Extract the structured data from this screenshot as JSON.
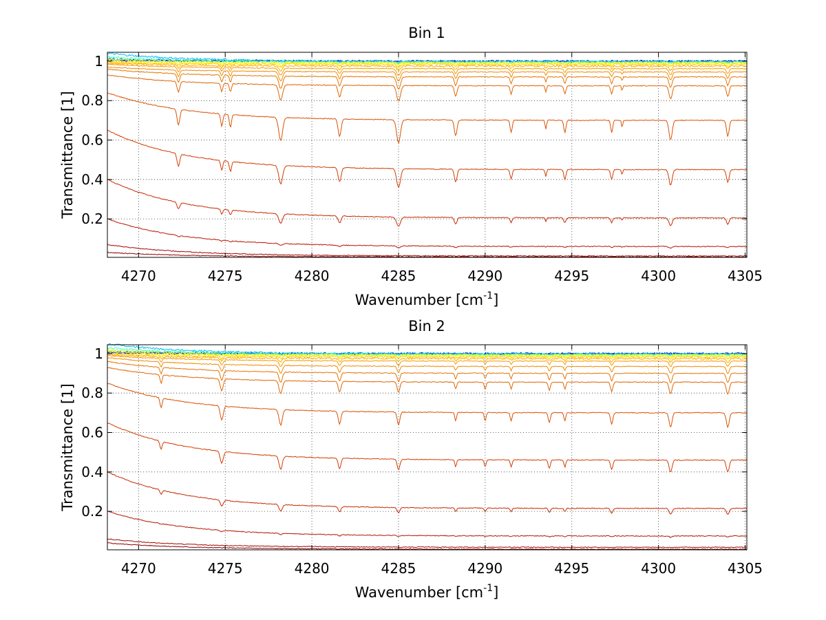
{
  "chart_data": [
    {
      "type": "line",
      "title": "Bin 1",
      "xlabel": "Wavenumber [cm",
      "xlabel_sup": "-1",
      "xlabel_end": "]",
      "ylabel": "Transmittance [1]",
      "xlim": [
        4268.2,
        4305.1
      ],
      "ylim": [
        0.005,
        1.045
      ],
      "xticks": [
        4270,
        4275,
        4280,
        4285,
        4290,
        4295,
        4300,
        4305
      ],
      "yticks": [
        0.2,
        0.4,
        0.6,
        0.8,
        1
      ],
      "ytick_labels": [
        "0.2",
        "0.4",
        "0.6",
        "0.8",
        "1"
      ],
      "grid": true,
      "dips": [
        {
          "x": 4272.3,
          "w": 0.9
        },
        {
          "x": 4274.8,
          "w": 0.7
        },
        {
          "x": 4275.3,
          "w": 0.7
        },
        {
          "x": 4278.2,
          "w": 1.3
        },
        {
          "x": 4281.6,
          "w": 1.0
        },
        {
          "x": 4285.0,
          "w": 1.3
        },
        {
          "x": 4288.3,
          "w": 0.9
        },
        {
          "x": 4291.5,
          "w": 0.7
        },
        {
          "x": 4293.5,
          "w": 0.5
        },
        {
          "x": 4294.6,
          "w": 0.7
        },
        {
          "x": 4297.3,
          "w": 0.7
        },
        {
          "x": 4297.9,
          "w": 0.4
        },
        {
          "x": 4300.7,
          "w": 1.1
        },
        {
          "x": 4304.0,
          "w": 0.9
        }
      ],
      "series": [
        {
          "color": "#00008f",
          "start": 1.005,
          "plateau": 1.0,
          "depth": 0.0
        },
        {
          "color": "#0040ff",
          "start": 1.01,
          "plateau": 0.999,
          "depth": 0.002
        },
        {
          "color": "#00bfff",
          "start": 1.04,
          "plateau": 0.998,
          "depth": 0.004
        },
        {
          "color": "#40ffbf",
          "start": 1.02,
          "plateau": 0.996,
          "depth": 0.006
        },
        {
          "color": "#bfff40",
          "start": 1.01,
          "plateau": 0.993,
          "depth": 0.01
        },
        {
          "color": "#ffff00",
          "start": 1.0,
          "plateau": 0.989,
          "depth": 0.015
        },
        {
          "color": "#ffd000",
          "start": 0.995,
          "plateau": 0.984,
          "depth": 0.02
        },
        {
          "color": "#ffaa00",
          "start": 0.99,
          "plateau": 0.975,
          "depth": 0.03
        },
        {
          "color": "#f59a00",
          "start": 0.985,
          "plateau": 0.962,
          "depth": 0.045
        },
        {
          "color": "#ef8a00",
          "start": 0.97,
          "plateau": 0.945,
          "depth": 0.06
        },
        {
          "color": "#e57300",
          "start": 0.96,
          "plateau": 0.92,
          "depth": 0.08
        },
        {
          "color": "#df6400",
          "start": 0.93,
          "plateau": 0.875,
          "depth": 0.1
        },
        {
          "color": "#d95000",
          "start": 0.84,
          "plateau": 0.7,
          "depth": 0.15
        },
        {
          "color": "#d33a00",
          "start": 0.65,
          "plateau": 0.45,
          "depth": 0.12
        },
        {
          "color": "#c52800",
          "start": 0.4,
          "plateau": 0.205,
          "depth": 0.06
        },
        {
          "color": "#b51500",
          "start": 0.2,
          "plateau": 0.06,
          "depth": 0.012
        },
        {
          "color": "#a00800",
          "start": 0.07,
          "plateau": 0.012,
          "depth": 0.002
        },
        {
          "color": "#8a0000",
          "start": 0.03,
          "plateau": 0.007,
          "depth": 0.0
        }
      ]
    },
    {
      "type": "line",
      "title": "Bin 2",
      "xlabel": "Wavenumber [cm",
      "xlabel_sup": "-1",
      "xlabel_end": "]",
      "ylabel": "Transmittance [1]",
      "xlim": [
        4268.2,
        4305.1
      ],
      "ylim": [
        0.005,
        1.045
      ],
      "xticks": [
        4270,
        4275,
        4280,
        4285,
        4290,
        4295,
        4300,
        4305
      ],
      "yticks": [
        0.2,
        0.4,
        0.6,
        0.8,
        1
      ],
      "ytick_labels": [
        "0.2",
        "0.4",
        "0.6",
        "0.8",
        "1"
      ],
      "grid": true,
      "dips": [
        {
          "x": 4271.3,
          "w": 0.7
        },
        {
          "x": 4274.8,
          "w": 1.0
        },
        {
          "x": 4278.2,
          "w": 1.1
        },
        {
          "x": 4281.6,
          "w": 0.9
        },
        {
          "x": 4285.0,
          "w": 0.9
        },
        {
          "x": 4288.3,
          "w": 0.6
        },
        {
          "x": 4290.0,
          "w": 0.6
        },
        {
          "x": 4291.5,
          "w": 0.6
        },
        {
          "x": 4293.7,
          "w": 0.7
        },
        {
          "x": 4294.6,
          "w": 0.6
        },
        {
          "x": 4297.3,
          "w": 0.8
        },
        {
          "x": 4300.7,
          "w": 1.0
        },
        {
          "x": 4304.0,
          "w": 1.0
        }
      ],
      "series": [
        {
          "color": "#00008f",
          "start": 1.005,
          "plateau": 1.0,
          "depth": 0.0
        },
        {
          "color": "#0040ff",
          "start": 1.01,
          "plateau": 0.999,
          "depth": 0.002
        },
        {
          "color": "#00bfff",
          "start": 1.05,
          "plateau": 0.998,
          "depth": 0.004
        },
        {
          "color": "#40ffbf",
          "start": 1.03,
          "plateau": 0.996,
          "depth": 0.006
        },
        {
          "color": "#bfff40",
          "start": 1.02,
          "plateau": 0.993,
          "depth": 0.01
        },
        {
          "color": "#ffff00",
          "start": 1.01,
          "plateau": 0.989,
          "depth": 0.015
        },
        {
          "color": "#ffd000",
          "start": 1.0,
          "plateau": 0.984,
          "depth": 0.02
        },
        {
          "color": "#ffaa00",
          "start": 0.995,
          "plateau": 0.975,
          "depth": 0.03
        },
        {
          "color": "#f59a00",
          "start": 0.99,
          "plateau": 0.962,
          "depth": 0.045
        },
        {
          "color": "#ef8a00",
          "start": 0.98,
          "plateau": 0.935,
          "depth": 0.06
        },
        {
          "color": "#e57300",
          "start": 0.96,
          "plateau": 0.9,
          "depth": 0.08
        },
        {
          "color": "#df6400",
          "start": 0.93,
          "plateau": 0.855,
          "depth": 0.1
        },
        {
          "color": "#d95000",
          "start": 0.85,
          "plateau": 0.7,
          "depth": 0.12
        },
        {
          "color": "#d33a00",
          "start": 0.65,
          "plateau": 0.46,
          "depth": 0.1
        },
        {
          "color": "#c52800",
          "start": 0.4,
          "plateau": 0.215,
          "depth": 0.05
        },
        {
          "color": "#b51500",
          "start": 0.2,
          "plateau": 0.075,
          "depth": 0.01
        },
        {
          "color": "#a00800",
          "start": 0.06,
          "plateau": 0.018,
          "depth": 0.002
        },
        {
          "color": "#8a0000",
          "start": 0.04,
          "plateau": 0.008,
          "depth": 0.0
        }
      ]
    }
  ]
}
